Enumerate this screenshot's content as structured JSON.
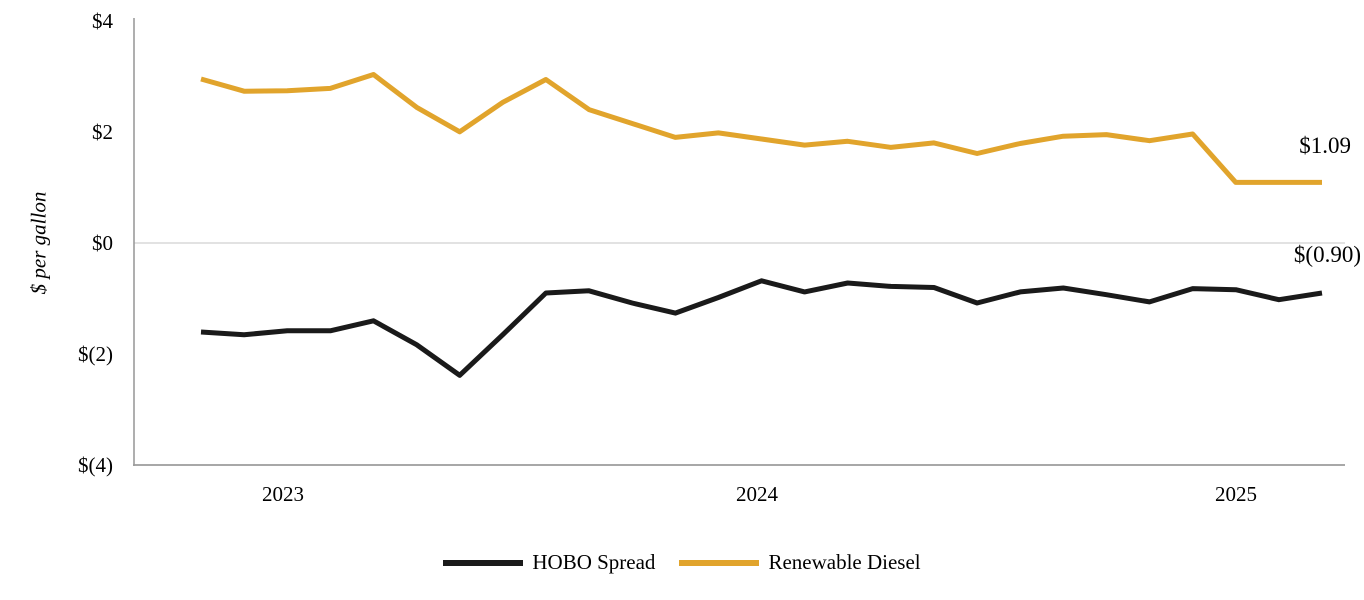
{
  "chart_data": {
    "type": "line",
    "title": "",
    "ylabel": "$ per gallon",
    "ylim": [
      -4,
      4
    ],
    "grid": "zero-baseline-only",
    "legend_position": "bottom-center",
    "yticks": [
      {
        "value": 4,
        "label": "$4"
      },
      {
        "value": 2,
        "label": "$2"
      },
      {
        "value": 0,
        "label": "$0"
      },
      {
        "value": -2,
        "label": "$(2)"
      },
      {
        "value": -4,
        "label": "$(4)"
      }
    ],
    "x_tick_labels": [
      "2023",
      "2024",
      "2025"
    ],
    "x_unit": "month",
    "series": [
      {
        "name": "HOBO Spread",
        "color": "#1a1a1a",
        "end_label": "$(0.90)",
        "end_value": -0.9,
        "values": [
          -1.6,
          -1.65,
          -1.58,
          -1.58,
          -1.4,
          -1.83,
          -2.38,
          -1.65,
          -0.9,
          -0.86,
          -1.08,
          -1.26,
          -0.98,
          -0.68,
          -0.88,
          -0.72,
          -0.78,
          -0.8,
          -1.08,
          -0.88,
          -0.81,
          -0.93,
          -1.06,
          -0.82,
          -0.84,
          -1.02,
          -0.9
        ]
      },
      {
        "name": "Renewable Diesel",
        "color": "#e1a42c",
        "end_label": "$1.09",
        "end_value": 1.09,
        "values": [
          2.95,
          2.73,
          2.74,
          2.78,
          3.03,
          2.44,
          2.0,
          2.53,
          2.94,
          2.4,
          2.15,
          1.9,
          1.98,
          1.87,
          1.76,
          1.83,
          1.72,
          1.8,
          1.61,
          1.79,
          1.92,
          1.95,
          1.84,
          1.96,
          1.09,
          1.09,
          1.09
        ]
      }
    ],
    "colors": {
      "axis_line": "#9b9b9b",
      "zero_gridline": "#d9d9d9",
      "text": "#000000"
    }
  }
}
